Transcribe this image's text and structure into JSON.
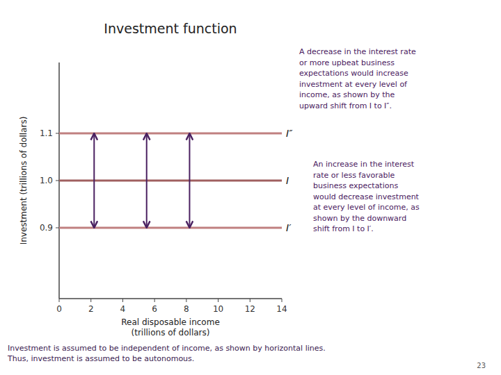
{
  "chart_data": {
    "type": "line",
    "title": "Investment function",
    "x_label": "Real disposable income\n(trillions of dollars)",
    "y_label": "Investment (trillions of dollars)",
    "xlim": [
      0,
      14.0
    ],
    "ylim": [
      0.75,
      1.25
    ],
    "xticks": [
      0,
      2,
      4,
      6,
      8,
      10,
      12,
      14
    ],
    "yticks": [
      0.9,
      {
        "value": 1.0,
        "label": "1.0"
      },
      1.1
    ],
    "grid": false,
    "x": [
      0,
      14.0
    ],
    "series": [
      {
        "name": "I″",
        "color": "#c08080",
        "values": [
          1.1,
          1.1
        ]
      },
      {
        "name": "I",
        "color": "#a06060",
        "values": [
          1.0,
          1.0
        ]
      },
      {
        "name": "I′",
        "color": "#c08080",
        "values": [
          0.9,
          0.9
        ]
      }
    ],
    "annotations": [
      {
        "type": "arrow",
        "x": 2.2,
        "y_start": 1.0,
        "y_end": 1.1,
        "color": "#4a2060"
      },
      {
        "type": "arrow",
        "x": 5.5,
        "y_start": 1.0,
        "y_end": 1.1,
        "color": "#4a2060"
      },
      {
        "type": "arrow",
        "x": 8.2,
        "y_start": 1.0,
        "y_end": 1.1,
        "color": "#4a2060"
      },
      {
        "type": "arrow",
        "x": 2.2,
        "y_start": 1.0,
        "y_end": 0.9,
        "color": "#4a2060"
      },
      {
        "type": "arrow",
        "x": 5.5,
        "y_start": 1.0,
        "y_end": 0.9,
        "color": "#4a2060"
      },
      {
        "type": "arrow",
        "x": 8.2,
        "y_start": 1.0,
        "y_end": 0.9,
        "color": "#4a2060"
      },
      {
        "type": "text",
        "text": "A decrease in the interest rate\nor more upbeat business\nexpectations would increase\ninvestment at every level of\nincome, as shown by the\nupward shift from I to I″.",
        "color": "#4a2060"
      },
      {
        "type": "text",
        "text": "An increase in the interest\nrate or less favorable\nbusiness expectations\nwould decrease investment\nat every level of income, as\nshown by the downward\nshift from I to I′.",
        "color": "#4a2060"
      },
      {
        "type": "text",
        "text": "Investment is assumed to be independent of income, as shown by horizontal lines.\nThus, investment is assumed to be autonomous.",
        "color": "#3a1a50"
      },
      {
        "type": "text",
        "text": "23",
        "color": "#555555"
      }
    ]
  }
}
